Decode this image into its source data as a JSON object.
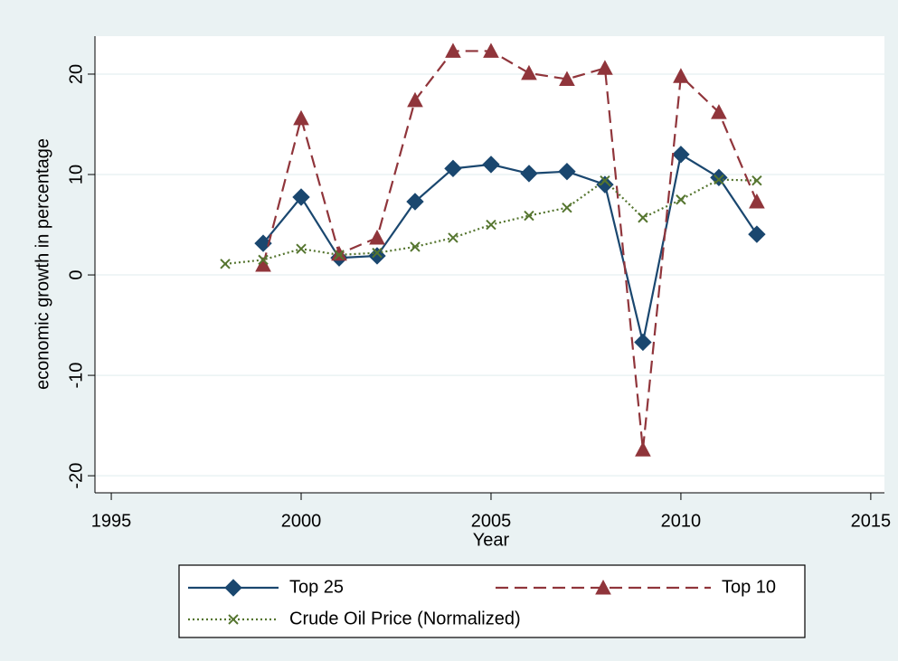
{
  "chart_data": {
    "type": "line",
    "xlabel": "Year",
    "ylabel": "economic growth in percentage",
    "x": [
      1998,
      1999,
      2000,
      2001,
      2002,
      2003,
      2004,
      2005,
      2006,
      2007,
      2008,
      2009,
      2010,
      2011,
      2012
    ],
    "series": [
      {
        "name": "Top 25",
        "color": "#1a476f",
        "line_style": "solid",
        "marker": "diamond",
        "values": [
          null,
          3.15,
          7.75,
          1.7,
          1.9,
          7.3,
          10.6,
          11.0,
          10.1,
          10.3,
          9.0,
          -6.7,
          12.0,
          9.7,
          4.05
        ]
      },
      {
        "name": "Top 10",
        "color": "#90353b",
        "line_style": "dashed",
        "marker": "triangle",
        "values": [
          null,
          1.0,
          15.6,
          2.1,
          3.7,
          17.4,
          22.3,
          22.3,
          20.1,
          19.5,
          20.6,
          -17.4,
          19.8,
          16.2,
          7.3
        ]
      },
      {
        "name": "Crude Oil Price (Normalized)",
        "color": "#55752f",
        "line_style": "dotted",
        "marker": "x",
        "values": [
          1.1,
          1.5,
          2.6,
          2.0,
          2.2,
          2.8,
          3.7,
          5.0,
          5.9,
          6.7,
          9.4,
          5.7,
          7.5,
          9.5,
          9.4
        ]
      }
    ],
    "xlim": [
      1994.57,
      2015.36
    ],
    "xticks": [
      1995,
      2000,
      2005,
      2010,
      2015
    ],
    "ylim": [
      -21.7,
      23.78
    ],
    "yticks": [
      -20,
      -10,
      0,
      10,
      20
    ],
    "grid": true,
    "legend": "bottom"
  }
}
